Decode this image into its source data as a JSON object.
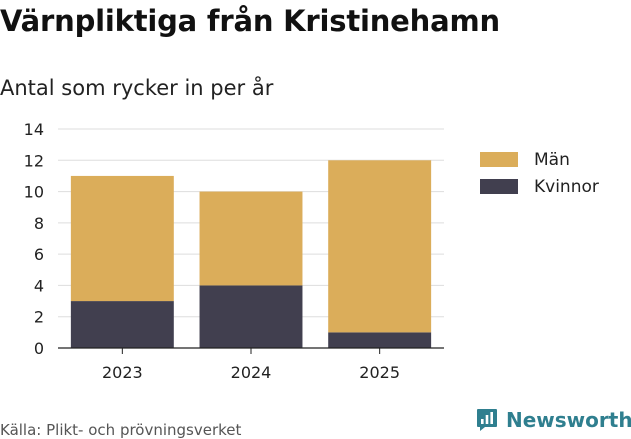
{
  "title": "Värnpliktiga från Kristinehamn",
  "subtitle": "Antal som rycker in per år",
  "source": "Källa: Plikt- och prövningsverket",
  "brand": {
    "name": "Newsworthy",
    "icon": "newsworthy-logo-icon",
    "color": "#2f7f8f"
  },
  "chart_data": {
    "type": "bar",
    "stacked": true,
    "categories": [
      "2023",
      "2024",
      "2025"
    ],
    "series": [
      {
        "name": "Kvinnor",
        "values": [
          3,
          4,
          1
        ],
        "color": "#413f4f"
      },
      {
        "name": "Män",
        "values": [
          8,
          6,
          11
        ],
        "color": "#dbad5a"
      }
    ],
    "title": "Värnpliktiga från Kristinehamn",
    "subtitle": "Antal som rycker in per år",
    "ylim": [
      0,
      14
    ],
    "yticks": [
      0,
      2,
      4,
      6,
      8,
      10,
      12,
      14
    ],
    "grid": true,
    "legend": {
      "placement": "right",
      "order": [
        "Män",
        "Kvinnor"
      ]
    }
  }
}
